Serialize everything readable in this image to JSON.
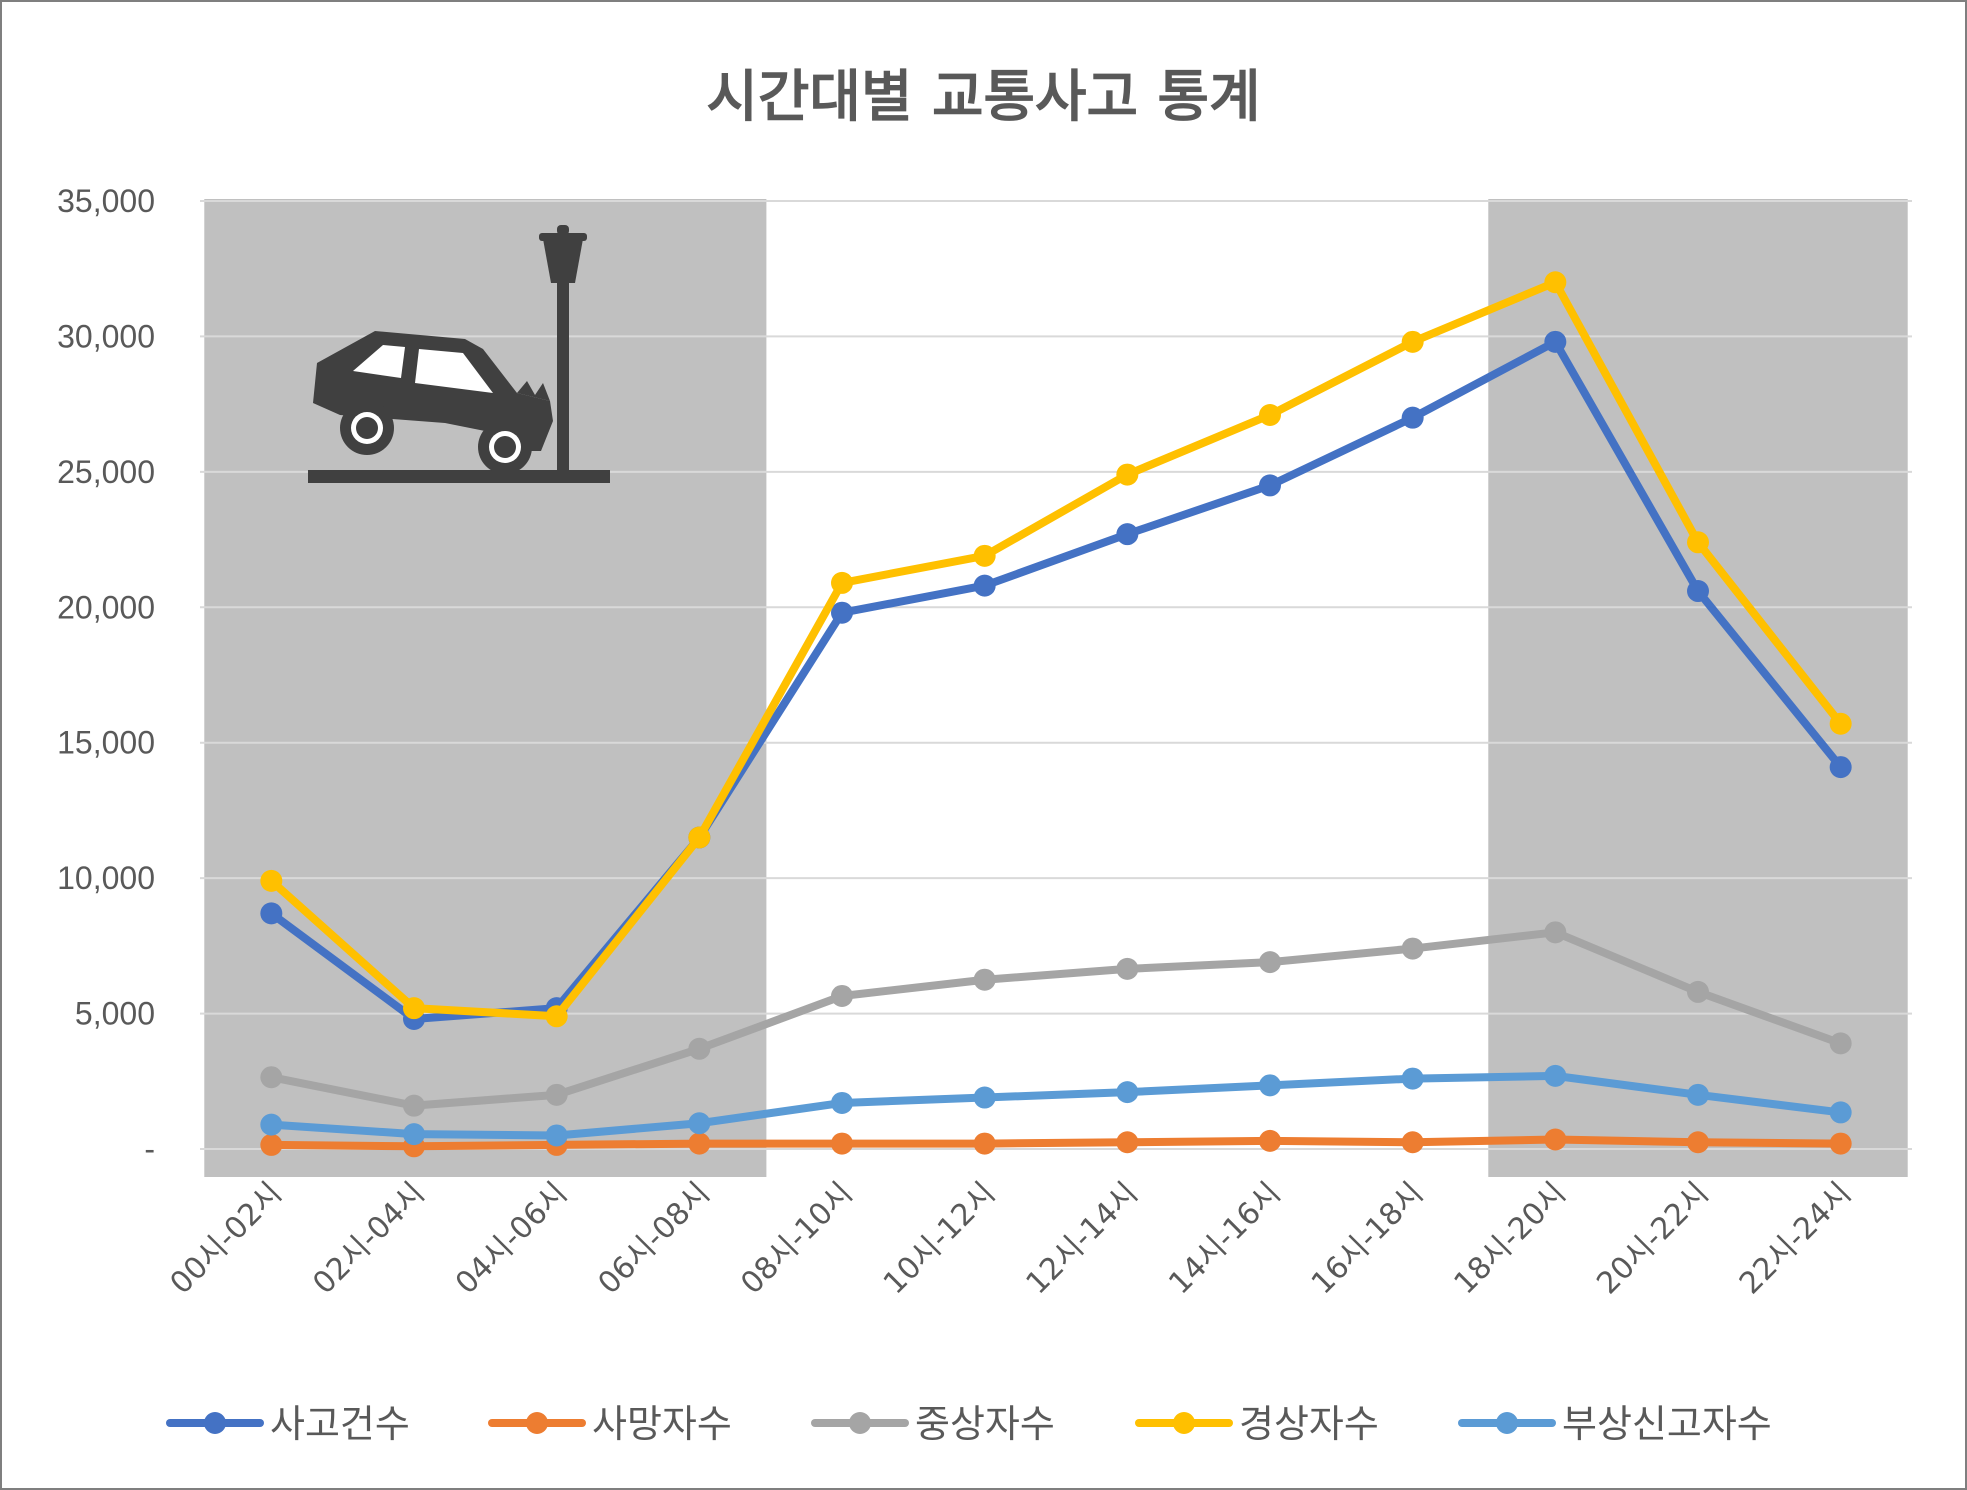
{
  "chart_data": {
    "type": "line",
    "title": "시간대별 교통사고 통계",
    "xlabel": "",
    "ylabel": "",
    "ylim": [
      0,
      35000
    ],
    "yticks": [
      0,
      5000,
      10000,
      15000,
      20000,
      25000,
      30000,
      35000
    ],
    "ytick_labels": [
      "-",
      "5,000",
      "10,000",
      "15,000",
      "20,000",
      "25,000",
      "30,000",
      "35,000"
    ],
    "grid": true,
    "legend_position": "bottom",
    "categories": [
      "00시-02시",
      "02시-04시",
      "04시-06시",
      "06시-08시",
      "08시-10시",
      "10시-12시",
      "12시-14시",
      "14시-16시",
      "16시-18시",
      "18시-20시",
      "20시-22시",
      "22시-24시"
    ],
    "shaded_ranges": [
      {
        "from": "00시-02시",
        "to": "06시-08시"
      },
      {
        "from": "18시-20시",
        "to": "22시-24시"
      }
    ],
    "shade_color": "#c0c0c0",
    "icon": "car-crash-lamppost-icon",
    "series": [
      {
        "name": "사고건수",
        "color": "#4472c4",
        "values": [
          8700,
          4800,
          5200,
          11500,
          19800,
          20800,
          22700,
          24500,
          27000,
          29800,
          20600,
          14100
        ]
      },
      {
        "name": "사망자수",
        "color": "#ed7d31",
        "values": [
          150,
          100,
          150,
          200,
          200,
          200,
          250,
          300,
          250,
          350,
          250,
          200
        ]
      },
      {
        "name": "중상자수",
        "color": "#a5a5a5",
        "values": [
          2650,
          1600,
          2000,
          3700,
          5650,
          6250,
          6650,
          6900,
          7400,
          8000,
          5800,
          3900
        ]
      },
      {
        "name": "경상자수",
        "color": "#ffc000",
        "values": [
          9900,
          5200,
          4900,
          11500,
          20900,
          21900,
          24900,
          27100,
          29800,
          32000,
          22400,
          15700
        ]
      },
      {
        "name": "부상신고자수",
        "color": "#5b9bd5",
        "values": [
          900,
          550,
          500,
          950,
          1700,
          1900,
          2100,
          2350,
          2600,
          2700,
          2000,
          1350
        ]
      }
    ]
  }
}
